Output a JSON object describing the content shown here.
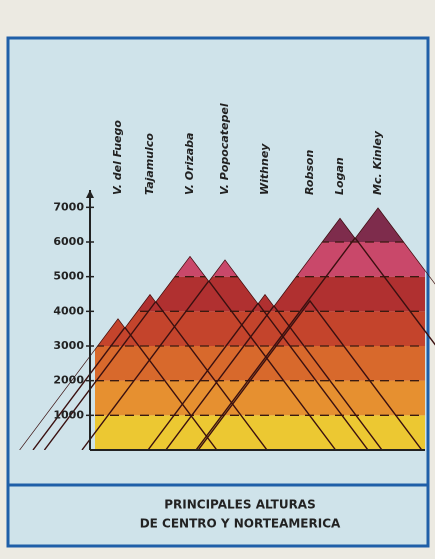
{
  "chart_data": {
    "type": "mountain",
    "title": [
      "PRINCIPALES ALTURAS",
      "DE CENTRO Y NORTEAMERICA"
    ],
    "categories": [
      "V. del Fuego",
      "Tajamulco",
      "V. Orizaba",
      "V. Popocatepel",
      "Withney",
      "Robson",
      "Logan",
      "Mc. Kinley"
    ],
    "values": [
      3800,
      4500,
      5600,
      5500,
      4500,
      4300,
      6700,
      7000
    ],
    "ylim": [
      0,
      7500
    ],
    "yticks": [
      1000,
      2000,
      3000,
      4000,
      5000,
      6000,
      7000
    ],
    "band_colors": [
      "#ecc832",
      "#e69030",
      "#d8692c",
      "#c4442c",
      "#b03030",
      "#c9486a",
      "#7e2c4c"
    ],
    "grid": true
  }
}
